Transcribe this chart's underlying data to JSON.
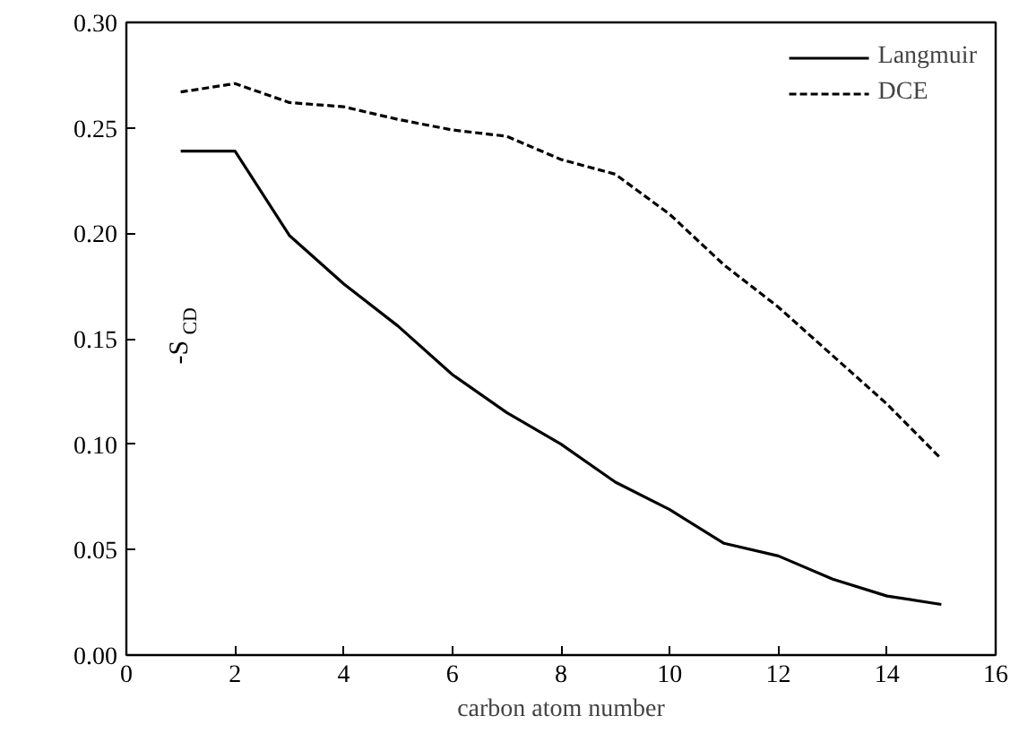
{
  "chart_data": {
    "type": "line",
    "xlabel": "carbon atom number",
    "ylabel": "-S$_{CD}$",
    "x": [
      1,
      2,
      3,
      4,
      5,
      6,
      7,
      8,
      9,
      10,
      11,
      12,
      13,
      14,
      15
    ],
    "series": [
      {
        "name": "Langmuir",
        "color": "#000000",
        "line_style": "solid",
        "values": [
          0.239,
          0.239,
          0.199,
          0.176,
          0.156,
          0.133,
          0.115,
          0.1,
          0.082,
          0.069,
          0.053,
          0.047,
          0.036,
          0.028,
          0.024
        ]
      },
      {
        "name": "DCE",
        "color": "#000000",
        "line_style": "dashed",
        "values": [
          0.267,
          0.271,
          0.262,
          0.26,
          0.254,
          0.249,
          0.246,
          0.235,
          0.228,
          0.209,
          0.185,
          0.165,
          0.142,
          0.119,
          0.093
        ]
      }
    ],
    "xlim": [
      0,
      16
    ],
    "xticks": [
      0,
      2,
      4,
      6,
      8,
      10,
      12,
      14,
      16
    ],
    "ylim": [
      0,
      0.3
    ],
    "yticks": [
      {
        "value": 0,
        "label": "0.00"
      },
      {
        "value": 0.05,
        "label": "0.05"
      },
      {
        "value": 0.1,
        "label": "0.10"
      },
      {
        "value": 0.15,
        "label": "0.15"
      },
      {
        "value": 0.2,
        "label": "0.20"
      },
      {
        "value": 0.25,
        "label": "0.25"
      },
      {
        "value": 0.3,
        "label": "0.30"
      }
    ],
    "grid": false,
    "legend": "top right",
    "marker": "none"
  }
}
